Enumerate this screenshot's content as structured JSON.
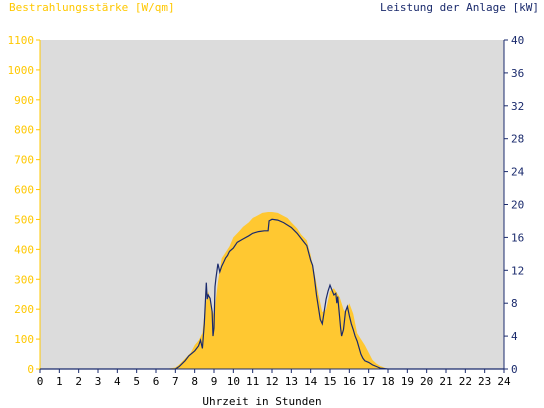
{
  "chart_data": {
    "type": "area",
    "left_axis_title": "Bestrahlungsstärke [W/qm]",
    "right_axis_title": "Leistung der Anlage [kW]",
    "xlabel": "Uhrzeit in Stunden",
    "x_ticks": [
      "0",
      "1",
      "2",
      "3",
      "4",
      "5",
      "6",
      "7",
      "8",
      "9",
      "10",
      "11",
      "12",
      "13",
      "14",
      "15",
      "16",
      "17",
      "18",
      "19",
      "20",
      "21",
      "22",
      "23",
      "24"
    ],
    "left_ticks": [
      "0",
      "100",
      "200",
      "300",
      "400",
      "500",
      "600",
      "700",
      "800",
      "900",
      "1000",
      "1100"
    ],
    "right_ticks": [
      "0",
      "4",
      "8",
      "12",
      "16",
      "20",
      "24",
      "28",
      "32",
      "36",
      "40"
    ],
    "xlim": [
      0,
      24
    ],
    "ylim_left": [
      0,
      1100
    ],
    "ylim_right": [
      0,
      40
    ],
    "grid": false,
    "colors": {
      "plot_background": "#dcdcdc",
      "irradiance_fill": "#ffc831",
      "power_line": "#1a2a6c",
      "left_axis": "#ffc800",
      "right_axis": "#1a2a6c"
    },
    "series": [
      {
        "axis": "left",
        "style": "area",
        "x": [
          0,
          6.5,
          7.0,
          7.2,
          7.5,
          7.8,
          8.0,
          8.2,
          8.4,
          8.5,
          8.6,
          8.7,
          8.8,
          8.9,
          9.0,
          9.2,
          9.4,
          9.6,
          9.8,
          10.0,
          10.3,
          10.5,
          10.8,
          11.0,
          11.3,
          11.5,
          11.8,
          12.0,
          12.3,
          12.5,
          12.8,
          13.0,
          13.3,
          13.5,
          13.8,
          14.0,
          14.2,
          14.4,
          14.6,
          14.8,
          15.0,
          15.2,
          15.4,
          15.5,
          15.7,
          15.8,
          16.0,
          16.2,
          16.4,
          16.6,
          16.8,
          17.0,
          17.2,
          17.4,
          17.6,
          17.8,
          18.0,
          24
        ],
        "y": [
          0,
          0,
          5,
          15,
          35,
          55,
          80,
          95,
          120,
          180,
          230,
          260,
          230,
          200,
          180,
          290,
          370,
          390,
          410,
          440,
          460,
          475,
          490,
          505,
          515,
          522,
          525,
          525,
          522,
          515,
          505,
          490,
          470,
          450,
          430,
          380,
          320,
          250,
          190,
          200,
          260,
          270,
          250,
          240,
          200,
          190,
          220,
          185,
          120,
          100,
          80,
          55,
          30,
          18,
          10,
          5,
          0,
          0
        ]
      },
      {
        "axis": "right",
        "style": "line",
        "x": [
          0,
          7.0,
          7.2,
          7.5,
          7.7,
          8.0,
          8.2,
          8.3,
          8.4,
          8.5,
          8.55,
          8.6,
          8.65,
          8.7,
          8.8,
          8.9,
          8.95,
          9.0,
          9.05,
          9.1,
          9.2,
          9.3,
          9.4,
          9.5,
          9.6,
          9.7,
          9.8,
          10.0,
          10.2,
          10.5,
          10.8,
          11.0,
          11.3,
          11.6,
          11.8,
          11.85,
          12.0,
          12.3,
          12.6,
          13.0,
          13.3,
          13.6,
          13.8,
          14.0,
          14.1,
          14.2,
          14.3,
          14.4,
          14.5,
          14.6,
          14.7,
          14.8,
          14.9,
          15.0,
          15.1,
          15.2,
          15.3,
          15.35,
          15.4,
          15.5,
          15.55,
          15.6,
          15.7,
          15.8,
          15.9,
          16.0,
          16.1,
          16.2,
          16.3,
          16.4,
          16.5,
          16.6,
          16.7,
          16.8,
          17.0,
          17.2,
          17.4,
          17.6,
          17.8,
          18.0,
          18.1,
          24
        ],
        "y": [
          0,
          0,
          0.3,
          1,
          1.6,
          2.2,
          2.8,
          3.5,
          2.5,
          5.5,
          8.0,
          10.5,
          8.5,
          9.0,
          8.6,
          7.0,
          4.0,
          5.0,
          10.0,
          11.0,
          12.8,
          11.8,
          12.5,
          13.0,
          13.5,
          13.8,
          14.3,
          14.7,
          15.4,
          15.8,
          16.2,
          16.5,
          16.7,
          16.8,
          16.8,
          18.0,
          18.2,
          18.1,
          17.8,
          17.2,
          16.5,
          15.6,
          15.0,
          13.2,
          12.6,
          11.0,
          9.0,
          7.5,
          6.0,
          5.5,
          7.0,
          8.5,
          9.5,
          10.2,
          9.6,
          9.0,
          9.2,
          8.0,
          8.8,
          6.2,
          5.0,
          4.0,
          4.8,
          7.0,
          7.6,
          6.5,
          5.5,
          4.8,
          4.0,
          3.4,
          2.6,
          1.8,
          1.3,
          1.0,
          0.8,
          0.5,
          0.3,
          0.1,
          0.05,
          0,
          0,
          0
        ]
      }
    ]
  }
}
